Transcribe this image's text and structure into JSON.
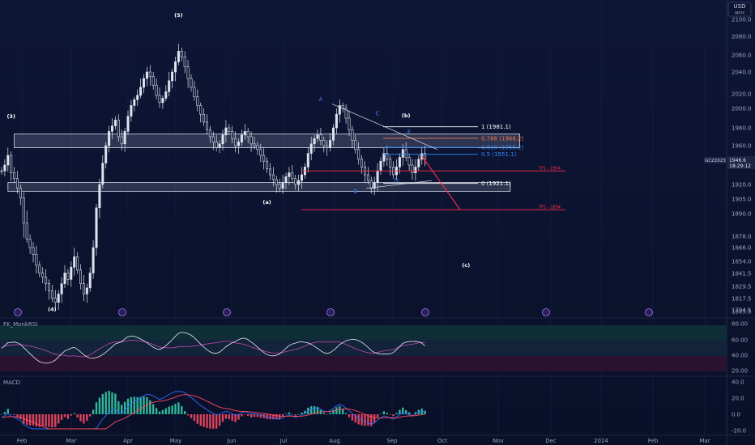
{
  "chart_data": {
    "type": "candlestick",
    "symbol": "GCZ2023",
    "currency": "USD",
    "currency_sub": "арох",
    "price_label": "1946.6",
    "countdown_label": "18:29:12",
    "y_ticks": [
      2100.0,
      2080.0,
      2060.0,
      2040.0,
      2020.0,
      2000.0,
      1980.0,
      1960.0,
      1940.0,
      1920.0,
      1905.0,
      1890.0,
      1878.0,
      1866.0,
      1854.0,
      1841.5,
      1829.5,
      1817.5,
      1805.5,
      1794.5
    ],
    "x_months": [
      "Feb",
      "Mar",
      "Apr",
      "May",
      "Jun",
      "Jul",
      "Aug",
      "Sep",
      "Oct",
      "Nov",
      "Dec",
      "2024",
      "Feb",
      "Mar"
    ],
    "candles_close": [
      1934,
      1940,
      1950,
      1932,
      1926,
      1916,
      1906,
      1885,
      1875,
      1866,
      1860,
      1850,
      1842,
      1838,
      1832,
      1825,
      1818,
      1814,
      1822,
      1832,
      1842,
      1836,
      1848,
      1858,
      1845,
      1832,
      1822,
      1828,
      1842,
      1866,
      1896,
      1920,
      1942,
      1960,
      1976,
      1982,
      1988,
      1970,
      1962,
      1976,
      1992,
      2004,
      2012,
      2018,
      2026,
      2034,
      2040,
      2036,
      2028,
      2018,
      2008,
      2014,
      2022,
      2032,
      2040,
      2052,
      2064,
      2058,
      2046,
      2034,
      2026,
      2016,
      2004,
      1994,
      1986,
      1978,
      1970,
      1964,
      1958,
      1962,
      1972,
      1980,
      1976,
      1968,
      1960,
      1964,
      1972,
      1976,
      1970,
      1962,
      1960,
      1956,
      1950,
      1944,
      1936,
      1930,
      1925,
      1920,
      1916,
      1922,
      1928,
      1932,
      1926,
      1920,
      1924,
      1930,
      1938,
      1952,
      1962,
      1968,
      1972,
      1966,
      1960,
      1958,
      1966,
      1980,
      1994,
      2004,
      2000,
      1990,
      1978,
      1966,
      1956,
      1946,
      1938,
      1930,
      1924,
      1916,
      1922,
      1934,
      1944,
      1952,
      1946,
      1938,
      1930,
      1938,
      1948,
      1956,
      1948,
      1940,
      1932,
      1938,
      1946,
      1952,
      1946
    ],
    "waves": [
      {
        "label": "(5)",
        "x_index": 56,
        "price": 2103
      },
      {
        "label": "(3)",
        "x_index": 3,
        "price": 1990
      },
      {
        "label": "(4)",
        "x_index": 16,
        "price": 1806
      },
      {
        "label": "(a)",
        "x_index": 84,
        "price": 1900
      },
      {
        "label": "(b)",
        "x_index": 128,
        "price": 1991
      },
      {
        "label": "(c)",
        "x_index": 147,
        "price": 1848
      },
      {
        "label": "A",
        "x_index": 101,
        "price": 2010
      },
      {
        "label": "B",
        "x_index": 112,
        "price": 1911
      },
      {
        "label": "C",
        "x_index": 119,
        "price": 1993
      },
      {
        "label": "D",
        "x_index": 125,
        "price": 1922
      },
      {
        "label": "E",
        "x_index": 129,
        "price": 1973
      }
    ],
    "zones": [
      {
        "from_index": 4,
        "to_index": 164,
        "low": 1958,
        "high": 1973
      },
      {
        "from_index": 2,
        "to_index": 161,
        "low": 1913,
        "high": 1922
      }
    ],
    "fib_levels": [
      {
        "label": "1 (1981.1)",
        "price": 1981.1,
        "color": "#ffffff"
      },
      {
        "label": "0.786 (1968.2)",
        "price": 1968.2,
        "color": "#f07b4a"
      },
      {
        "label": "0.618 (1958.2)",
        "price": 1958.2,
        "color": "#2a8cff"
      },
      {
        "label": "0.5 (1951.1)",
        "price": 1951.1,
        "color": "#2a8cff"
      },
      {
        "label": "0 (1921.1)",
        "price": 1921.1,
        "color": "#ffffff"
      }
    ],
    "targets": [
      {
        "label": "TP1 - 1934",
        "price": 1934,
        "color": "#ff2d4e"
      },
      {
        "label": "TP2 - 1894",
        "price": 1894,
        "color": "#ff2d4e"
      }
    ],
    "oscillator1": {
      "title": "FK_MonkRSI",
      "ticks": [
        80.0,
        60.0,
        40.0,
        20.0
      ],
      "ylim": [
        20,
        80
      ]
    },
    "oscillator2": {
      "title": "MACD",
      "ticks": [
        40.0,
        20.0,
        0.0,
        -20.0
      ],
      "ylim": [
        -20,
        40
      ]
    }
  }
}
